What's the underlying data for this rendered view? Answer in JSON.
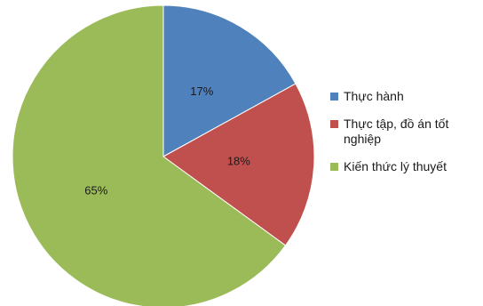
{
  "chart_data": {
    "type": "pie",
    "title": "",
    "slices": [
      {
        "label": "Thực hành",
        "value": 17,
        "value_label": "17%",
        "color": "#4F81BD"
      },
      {
        "label": "Thực tập, đồ án tốt nghiệp",
        "value": 18,
        "value_label": "18%",
        "color": "#C0504D"
      },
      {
        "label": "Kiến thức lý thuyết",
        "value": 65,
        "value_label": "65%",
        "color": "#9BBB59"
      }
    ],
    "start_angle_deg": 0,
    "direction": "clockwise",
    "legend_position": "right"
  }
}
